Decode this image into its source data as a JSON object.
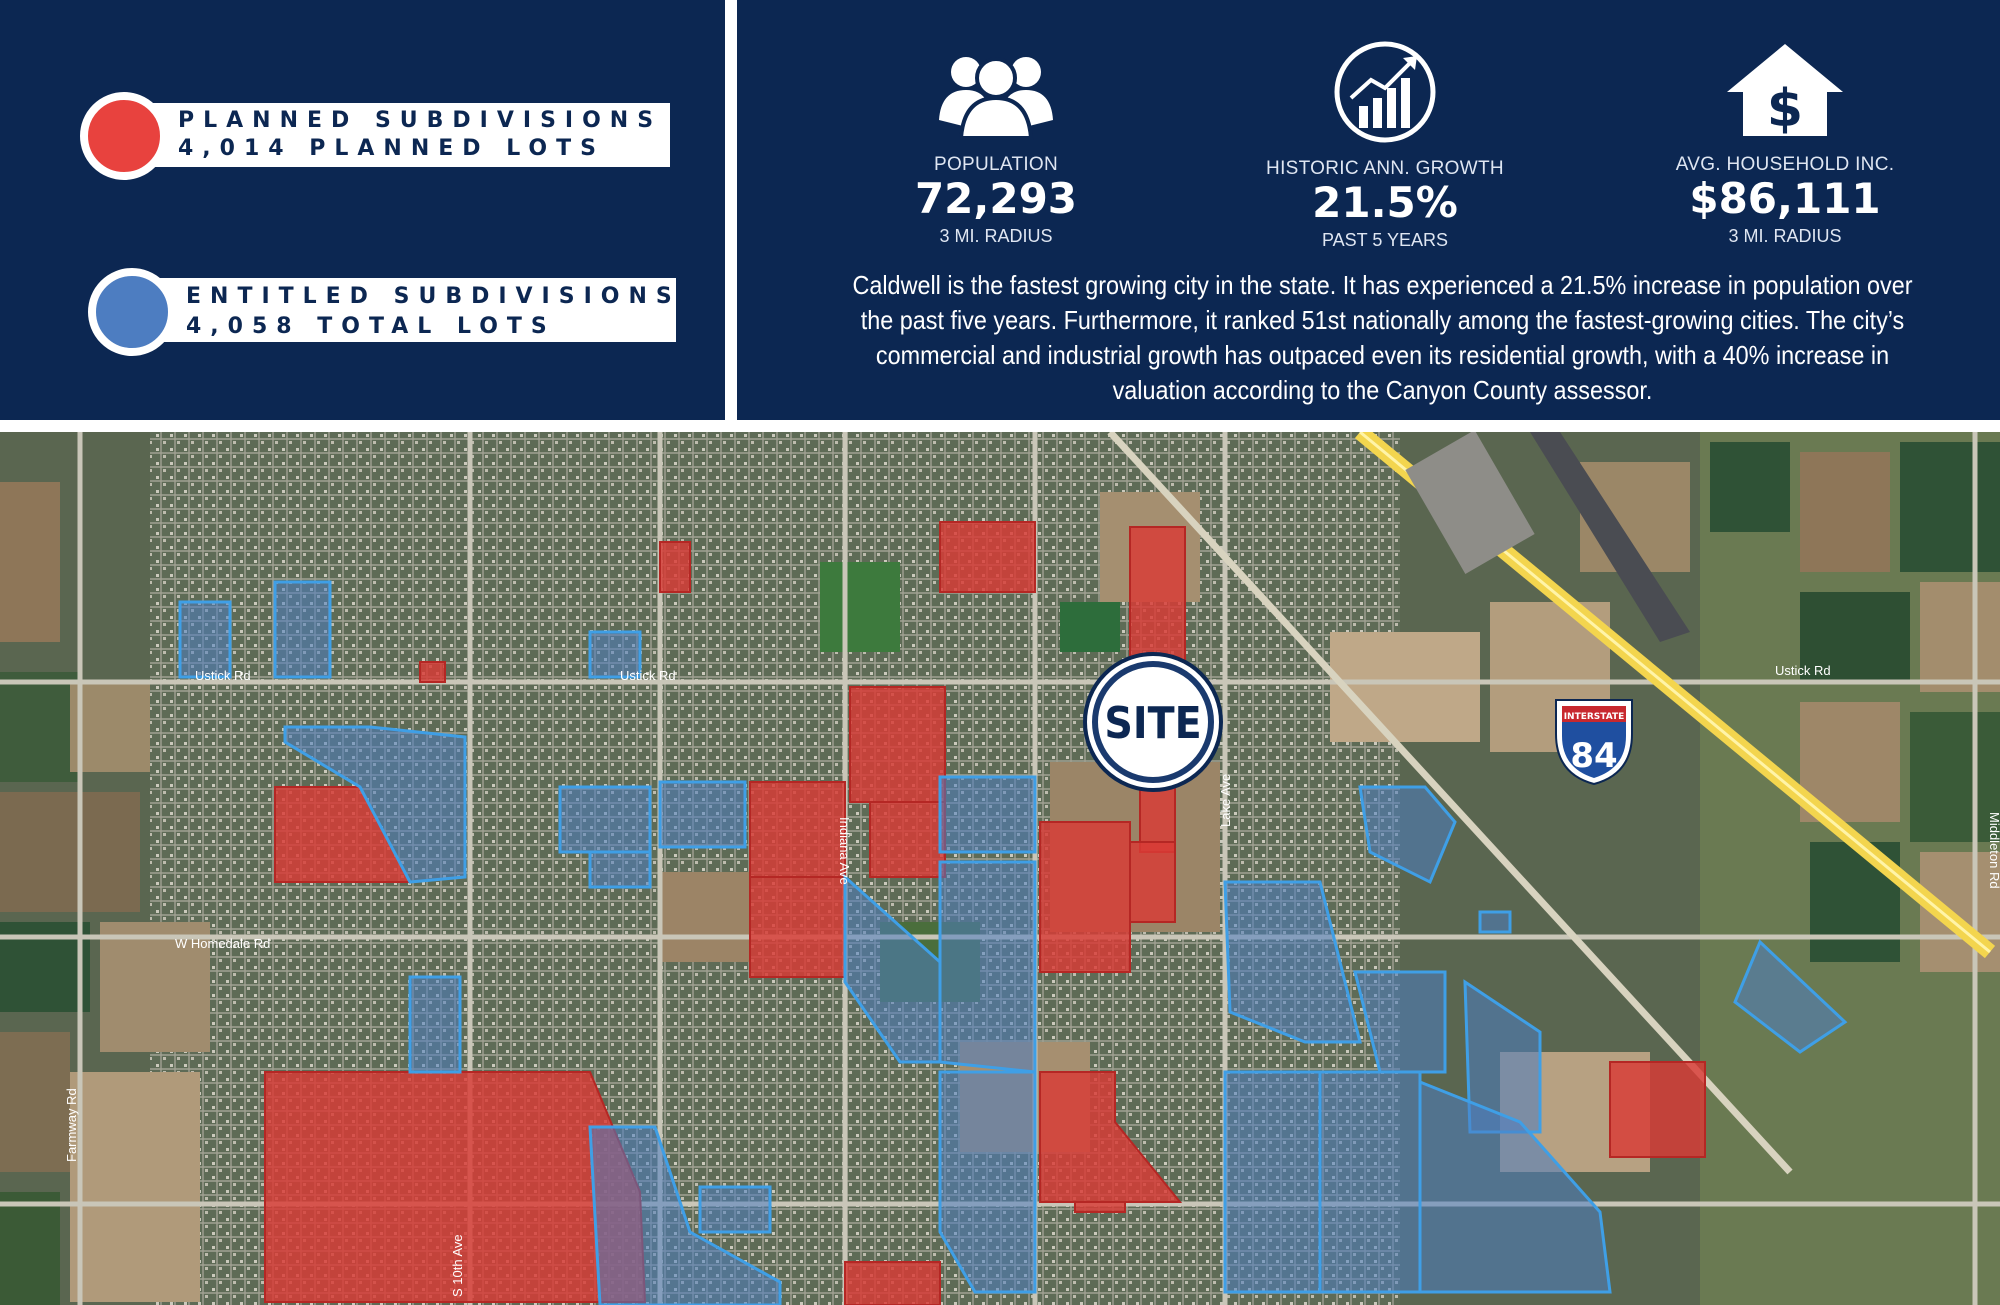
{
  "legend": {
    "planned": {
      "line1": "PLANNED SUBDIVISIONS",
      "line2": "4,014 PLANNED LOTS",
      "color": "#e8423e"
    },
    "entitled": {
      "line1": "ENTITLED SUBDIVISIONS",
      "line2": "4,058 TOTAL LOTS",
      "color": "#4d7dc1"
    }
  },
  "stats": [
    {
      "icon": "people-icon",
      "label": "POPULATION",
      "value": "72,293",
      "sub": "3 MI. RADIUS"
    },
    {
      "icon": "growth-chart-icon",
      "label": "HISTORIC ANN. GROWTH",
      "value": "21.5%",
      "sub": "PAST 5 YEARS"
    },
    {
      "icon": "house-dollar-icon",
      "label": "AVG. HOUSEHOLD INC.",
      "value": "$86,111",
      "sub": "3 MI. RADIUS"
    }
  ],
  "description": "Caldwell is the fastest growing city in the state. It has experienced a 21.5% increase in population over the past five years. Furthermore, it ranked 51st nationally among the fastest-growing cities. The city’s commercial and industrial growth has outpaced even its residential growth, with a 40% increase in valuation according to the Canyon County assessor.",
  "map": {
    "site_label": "SITE",
    "interstate": {
      "label": "INTERSTATE",
      "number": "84"
    },
    "roads": {
      "ustick_west": "Ustick Rd",
      "ustick_mid": "Ustick Rd",
      "ustick_east": "Ustick Rd",
      "indiana": "Indiana Ave",
      "lake": "Lake Ave",
      "middleton": "Middleton Rd",
      "homedale": "W Homedale Rd",
      "farmway": "Farmway Rd",
      "tenth": "S 10th Ave"
    },
    "colors": {
      "planned": "#d93a36",
      "entitled": "#3f8fd6",
      "highway": "#f3d54e",
      "road": "#c9c6b8"
    }
  }
}
